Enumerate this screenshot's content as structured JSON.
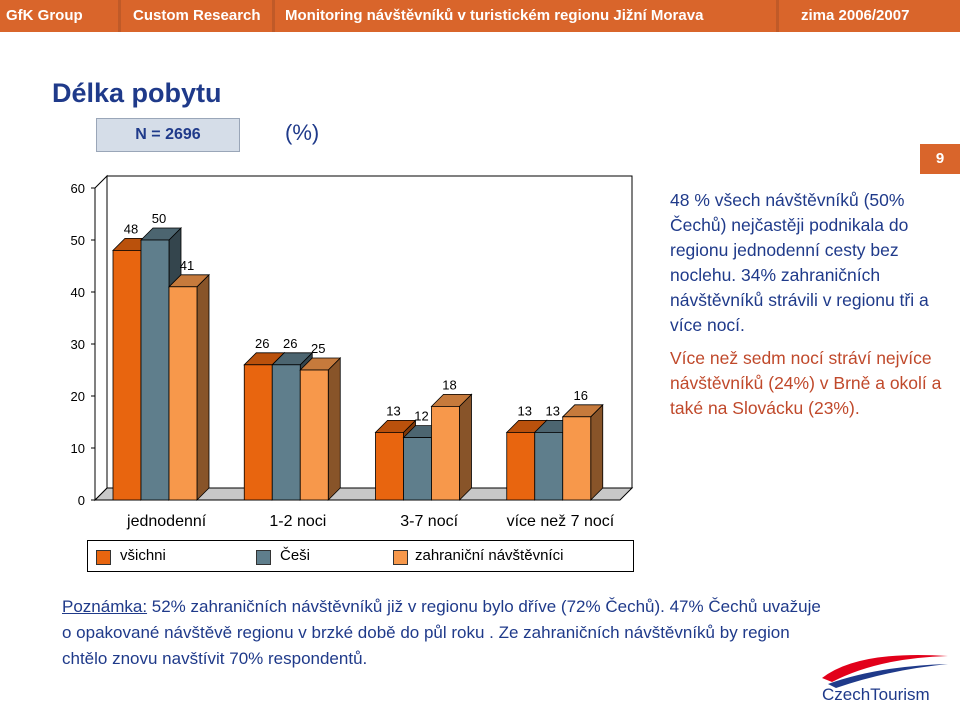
{
  "header": {
    "items": [
      "GfK Group",
      "Custom Research",
      "Monitoring návštěvníků v turistickém regionu Jižní Morava",
      "zima 2006/2007"
    ]
  },
  "title": "Délka pobytu",
  "sample": "N = 2696",
  "unit": "(%)",
  "page_number": "9",
  "chart_data": {
    "type": "bar",
    "categories": [
      "jednodenní",
      "1-2 noci",
      "3-7 nocí",
      "více než 7 nocí"
    ],
    "series": [
      {
        "name": "všichni",
        "values": [
          48,
          26,
          13,
          13
        ],
        "color": "#e8650f"
      },
      {
        "name": "Češi",
        "values": [
          50,
          26,
          12,
          13
        ],
        "color": "#5f7e8c"
      },
      {
        "name": "zahraniční návštěvníci",
        "values": [
          41,
          25,
          18,
          16
        ],
        "color": "#f7984b"
      }
    ],
    "ylim": [
      0,
      60
    ],
    "yticks": [
      0,
      10,
      20,
      30,
      40,
      50,
      60
    ],
    "grid": false,
    "legend": "bottom"
  },
  "side": {
    "p1": "48 % všech návštěvníků (50% Čechů) nejčastěji podnikala do regionu jednodenní cesty bez noclehu. 34% zahraničních návštěvníků strávili v regionu tři a více nocí.",
    "p2": "Více než sedm nocí stráví nejvíce návštěvníků (24%) v Brně a okolí a také na Slovácku (23%)."
  },
  "note": {
    "label": "Poznámka:",
    "text": " 52% zahraničních návštěvníků již v regionu bylo dříve (72% Čechů). 47% Čechů uvažuje o opakované návštěvě regionu v brzké době do půl roku . Ze zahraničních návštěvníků by region chtělo znovu navštívit 70% respondentů."
  },
  "logo": {
    "text": "CzechTourism",
    "colors": [
      "#e2001a",
      "#1f3a8a"
    ]
  }
}
